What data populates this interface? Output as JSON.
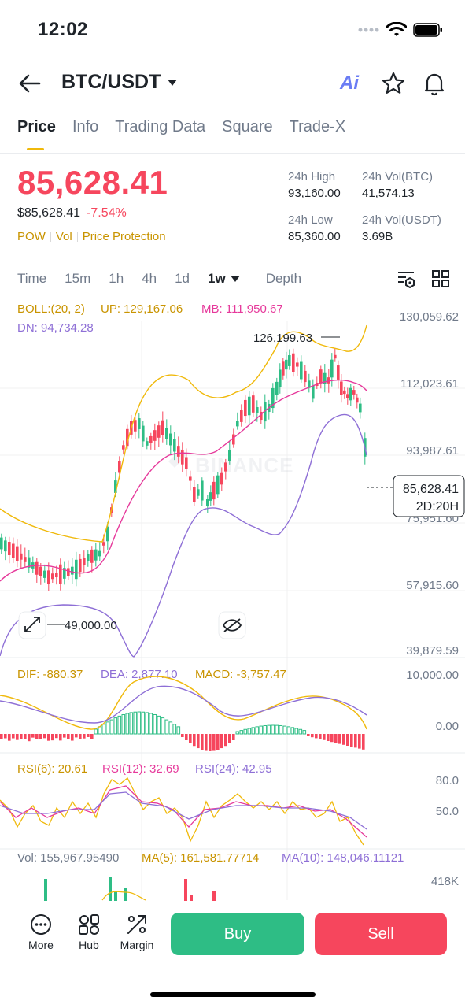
{
  "status_bar": {
    "time": "12:02"
  },
  "header": {
    "pair": "BTC/USDT",
    "ai_label": "Ai"
  },
  "tabs": [
    {
      "label": "Price",
      "active": true
    },
    {
      "label": "Info"
    },
    {
      "label": "Trading Data"
    },
    {
      "label": "Square"
    },
    {
      "label": "Trade-X"
    }
  ],
  "price": {
    "last": "85,628.41",
    "usd": "$85,628.41",
    "change": "-7.54%",
    "tags": [
      "POW",
      "Vol",
      "Price Protection"
    ]
  },
  "stats": {
    "high_label": "24h High",
    "high": "93,160.00",
    "vol_btc_label": "24h Vol(BTC)",
    "vol_btc": "41,574.13",
    "low_label": "24h Low",
    "low": "85,360.00",
    "vol_usdt_label": "24h Vol(USDT)",
    "vol_usdt": "3.69B"
  },
  "timeframes": [
    "Time",
    "15m",
    "1h",
    "4h",
    "1d",
    "1w",
    "Depth"
  ],
  "active_timeframe": "1w",
  "chart": {
    "boll": {
      "label": "BOLL:(20, 2)",
      "up": "UP: 129,167.06",
      "mb": "MB: 111,950.67",
      "dn": "DN: 94,734.28"
    },
    "price_axis": [
      "130,059.62",
      "112,023.61",
      "93,987.61",
      "75,951.60",
      "57,915.60",
      "39,879.59"
    ],
    "high_marker": "126,199.63",
    "low_marker": "49,000.00",
    "current_price": "85,628.41",
    "countdown": "2D:20H",
    "watermark": "BINANCE",
    "macd": {
      "dif": "DIF: -880.37",
      "dea": "DEA: 2,877.10",
      "macd": "MACD: -3,757.47",
      "axis_top": "10,000.00",
      "axis_zero": "0.00"
    },
    "rsi": {
      "rsi6": "RSI(6): 20.61",
      "rsi12": "RSI(12): 32.69",
      "rsi24": "RSI(24): 42.95",
      "axis_80": "80.0",
      "axis_50": "50.0"
    },
    "vol": {
      "vol": "Vol: 155,967.95490",
      "ma5": "MA(5): 161,581.77714",
      "ma10": "MA(10): 148,046.11121",
      "axis": "418K"
    },
    "colors": {
      "up": "#2ebd85",
      "down": "#f6465d",
      "boll_up": "#f0b90b",
      "mb": "#e6399b",
      "dn": "#8e6fd6"
    }
  },
  "bottom_bar": {
    "more": "More",
    "hub": "Hub",
    "margin": "Margin",
    "buy": "Buy",
    "sell": "Sell"
  }
}
